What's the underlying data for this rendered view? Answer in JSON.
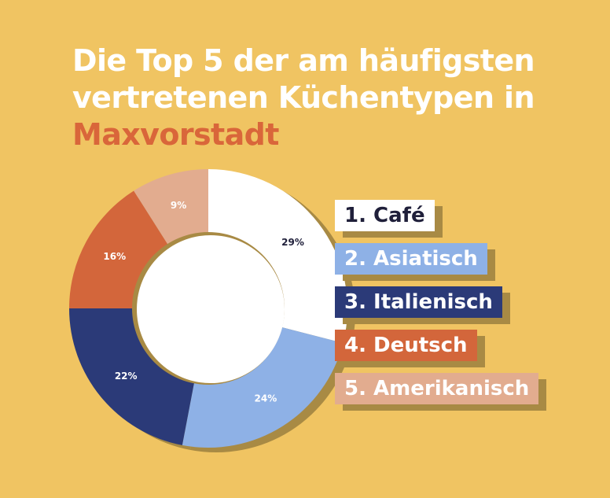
{
  "title": {
    "line1": "Die Top 5 der am häufigsten",
    "line2": "vertretenen Küchentypen in",
    "line3": "Maxvorstadt"
  },
  "colors": {
    "background": "#f0c462",
    "title_text": "#ffffff",
    "title_accent": "#d9663a",
    "shadow": "#a88a44",
    "dark_text": "#1f1f3a",
    "light_text": "#ffffff"
  },
  "chart_data": {
    "type": "pie",
    "donut": true,
    "title": "Die Top 5 der am häufigsten vertretenen Küchentypen in Maxvorstadt",
    "slices": [
      {
        "name": "Café",
        "value": 29,
        "label": "29%",
        "color": "#ffffff"
      },
      {
        "name": "Asiatisch",
        "value": 24,
        "label": "24%",
        "color": "#8eb1e6"
      },
      {
        "name": "Italienisch",
        "value": 22,
        "label": "22%",
        "color": "#2b3a78"
      },
      {
        "name": "Deutsch",
        "value": 16,
        "label": "16%",
        "color": "#d3663b"
      },
      {
        "name": "Amerikanisch",
        "value": 9,
        "label": "9%",
        "color": "#e2ac8f"
      }
    ],
    "legend_placement": "right"
  },
  "legend": [
    {
      "label": "1.  Café"
    },
    {
      "label": "2.  Asiatisch"
    },
    {
      "label": "3.  Italienisch"
    },
    {
      "label": "4.  Deutsch"
    },
    {
      "label": "5.  Amerikanisch"
    }
  ]
}
